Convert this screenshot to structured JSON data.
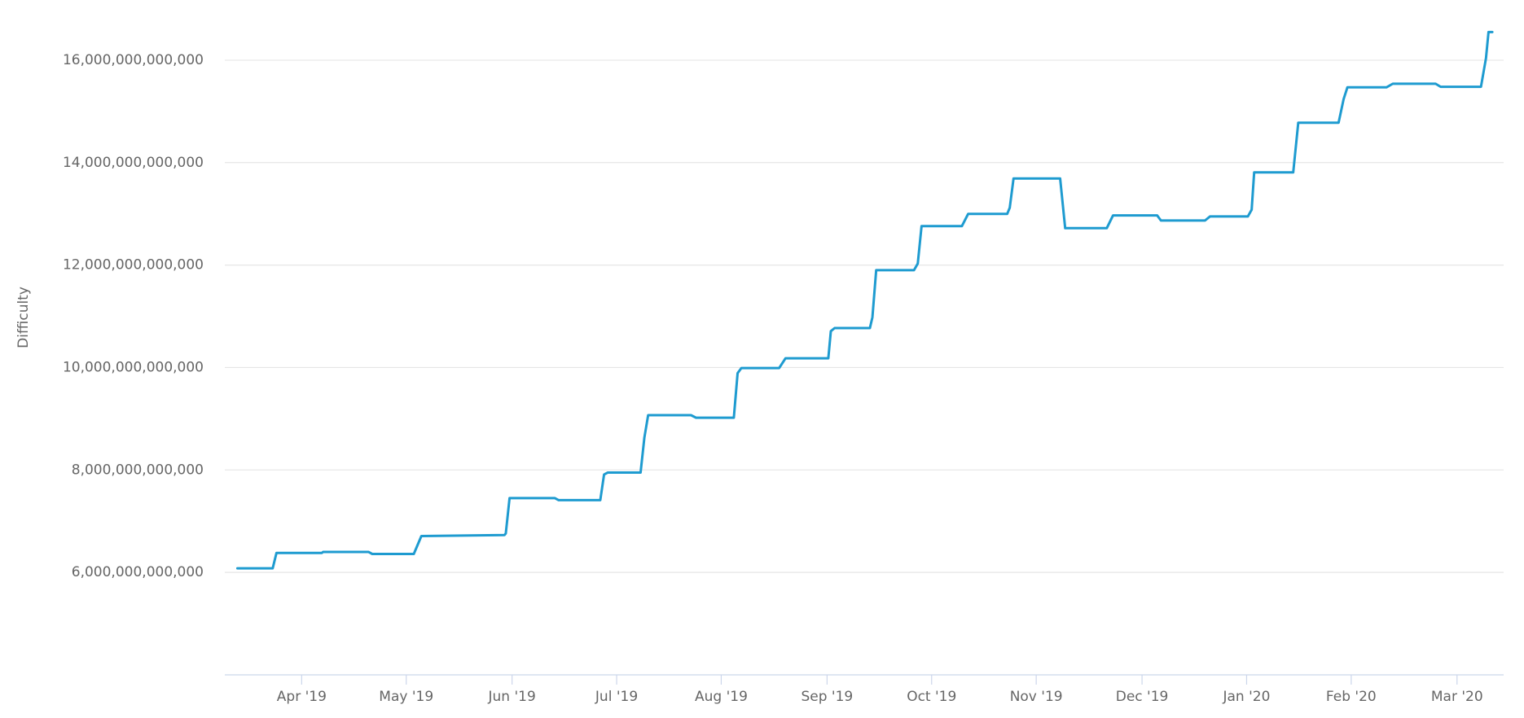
{
  "chart_data": {
    "type": "line",
    "y_label": "Difficulty",
    "color": "#1e9bd0",
    "grid": true,
    "xlim": [
      2019.189,
      2020.204
    ],
    "ylim": [
      4000000000000,
      17000000000000
    ],
    "xticks": [
      {
        "value": 2019.25,
        "label": "Apr '19"
      },
      {
        "value": 2019.333,
        "label": "May '19"
      },
      {
        "value": 2019.417,
        "label": "Jun '19"
      },
      {
        "value": 2019.5,
        "label": "Jul '19"
      },
      {
        "value": 2019.583,
        "label": "Aug '19"
      },
      {
        "value": 2019.667,
        "label": "Sep '19"
      },
      {
        "value": 2019.75,
        "label": "Oct '19"
      },
      {
        "value": 2019.833,
        "label": "Nov '19"
      },
      {
        "value": 2019.917,
        "label": "Dec '19"
      },
      {
        "value": 2020.0,
        "label": "Jan '20"
      },
      {
        "value": 2020.083,
        "label": "Feb '20"
      },
      {
        "value": 2020.167,
        "label": "Mar '20"
      }
    ],
    "yticks": [
      {
        "value": 6000000000000,
        "label": "6,000,000,000,000"
      },
      {
        "value": 8000000000000,
        "label": "8,000,000,000,000"
      },
      {
        "value": 10000000000000,
        "label": "10,000,000,000,000"
      },
      {
        "value": 12000000000000,
        "label": "12,000,000,000,000"
      },
      {
        "value": 14000000000000,
        "label": "14,000,000,000,000"
      },
      {
        "value": 16000000000000,
        "label": "16,000,000,000,000"
      }
    ],
    "x": [
      2019.199,
      2019.227,
      2019.23,
      2019.266,
      2019.267,
      2019.303,
      2019.306,
      2019.339,
      2019.345,
      2019.411,
      2019.412,
      2019.415,
      2019.451,
      2019.454,
      2019.487,
      2019.49,
      2019.493,
      2019.519,
      2019.522,
      2019.525,
      2019.559,
      2019.563,
      2019.593,
      2019.596,
      2019.599,
      2019.629,
      2019.634,
      2019.668,
      2019.67,
      2019.673,
      2019.701,
      2019.703,
      2019.706,
      2019.736,
      2019.739,
      2019.742,
      2019.774,
      2019.779,
      2019.81,
      2019.812,
      2019.815,
      2019.852,
      2019.856,
      2019.889,
      2019.894,
      2019.929,
      2019.932,
      2019.967,
      2019.971,
      2020.001,
      2020.004,
      2020.006,
      2020.037,
      2020.041,
      2020.073,
      2020.077,
      2020.08,
      2020.111,
      2020.116,
      2020.15,
      2020.154,
      2020.186,
      2020.19,
      2020.192,
      2020.195
    ],
    "values": [
      6080000000000,
      6080000000000,
      6380000000000,
      6380000000000,
      6400000000000,
      6400000000000,
      6360000000000,
      6360000000000,
      6710000000000,
      6730000000000,
      6760000000000,
      7450000000000,
      7450000000000,
      7410000000000,
      7410000000000,
      7910000000000,
      7950000000000,
      7950000000000,
      8630000000000,
      9070000000000,
      9070000000000,
      9020000000000,
      9020000000000,
      9890000000000,
      9990000000000,
      9990000000000,
      10180000000000,
      10180000000000,
      10710000000000,
      10770000000000,
      10770000000000,
      10980000000000,
      11900000000000,
      11900000000000,
      12030000000000,
      12760000000000,
      12760000000000,
      13000000000000,
      13000000000000,
      13120000000000,
      13690000000000,
      13690000000000,
      12720000000000,
      12720000000000,
      12970000000000,
      12970000000000,
      12870000000000,
      12870000000000,
      12950000000000,
      12950000000000,
      13080000000000,
      13810000000000,
      13810000000000,
      14780000000000,
      14780000000000,
      15240000000000,
      15470000000000,
      15470000000000,
      15540000000000,
      15540000000000,
      15480000000000,
      15480000000000,
      16040000000000,
      16550000000000,
      16550000000000
    ]
  }
}
